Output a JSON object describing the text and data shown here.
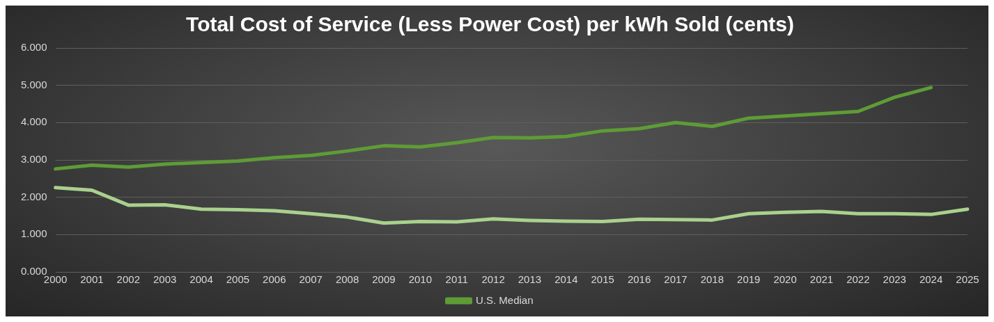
{
  "chart_data": {
    "type": "line",
    "title": "Total Cost of Service (Less Power Cost) per kWh Sold (cents)",
    "categories": [
      "2000",
      "2001",
      "2002",
      "2003",
      "2004",
      "2005",
      "2006",
      "2007",
      "2008",
      "2009",
      "2010",
      "2011",
      "2012",
      "2013",
      "2014",
      "2015",
      "2016",
      "2017",
      "2018",
      "2019",
      "2020",
      "2021",
      "2022",
      "2023",
      "2024",
      "2025"
    ],
    "series": [
      {
        "color": "#a9d18e",
        "values": [
          2.26,
          2.19,
          1.79,
          1.8,
          1.68,
          1.67,
          1.64,
          1.56,
          1.47,
          1.31,
          1.35,
          1.34,
          1.42,
          1.38,
          1.36,
          1.35,
          1.41,
          1.4,
          1.39,
          1.56,
          1.6,
          1.62,
          1.56,
          1.56,
          1.54,
          1.68
        ]
      },
      {
        "name": "U.S. Median",
        "color": "#5e9c36",
        "values": [
          2.76,
          2.86,
          2.81,
          2.89,
          2.93,
          2.97,
          3.06,
          3.12,
          3.24,
          3.38,
          3.35,
          3.46,
          3.6,
          3.59,
          3.63,
          3.78,
          3.84,
          4.0,
          3.9,
          4.12,
          4.18,
          4.24,
          4.3,
          4.68,
          4.94,
          null
        ]
      }
    ],
    "ylim": [
      0,
      6
    ],
    "yticks": [
      {
        "value": 0,
        "label": "0.000"
      },
      {
        "value": 1,
        "label": "1.000"
      },
      {
        "value": 2,
        "label": "2.000"
      },
      {
        "value": 3,
        "label": "3.000"
      },
      {
        "value": 4,
        "label": "4.000"
      },
      {
        "value": 5,
        "label": "5.000"
      },
      {
        "value": 6,
        "label": "6.000"
      }
    ],
    "grid": "y",
    "legend": "bottom",
    "marker": "none",
    "line_style": "solid"
  }
}
